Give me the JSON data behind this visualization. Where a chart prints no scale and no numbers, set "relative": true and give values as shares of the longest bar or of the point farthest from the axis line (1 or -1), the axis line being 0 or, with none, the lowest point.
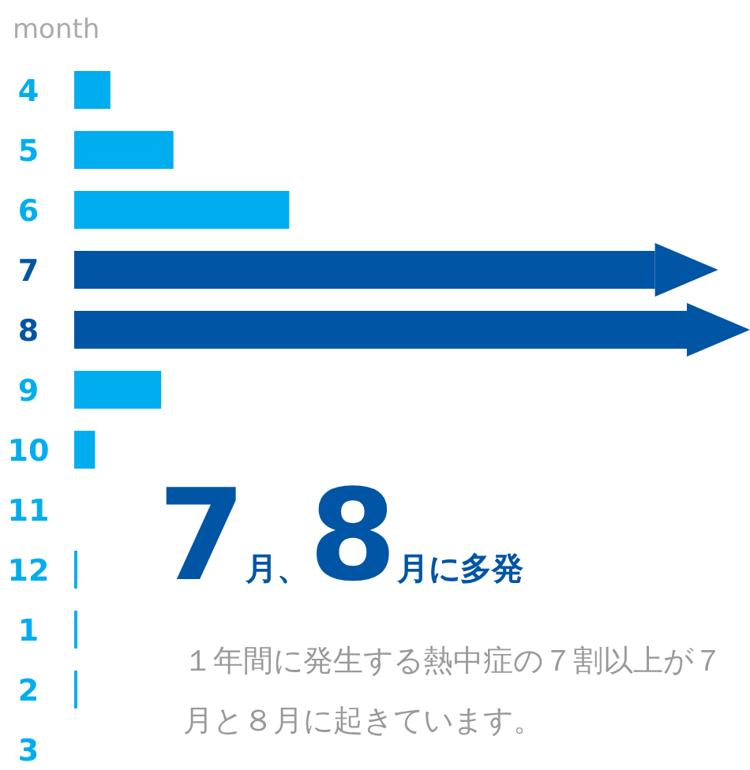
{
  "chart_data": {
    "type": "bar",
    "orientation": "horizontal",
    "relative": true,
    "ylabel": "month",
    "categories": [
      "4",
      "5",
      "6",
      "7",
      "8",
      "9",
      "10",
      "11",
      "12",
      "1",
      "2",
      "3"
    ],
    "values": [
      0.059,
      0.162,
      0.351,
      0.948,
      1,
      0.142,
      0.034,
      0,
      0.005,
      0.005,
      0.005,
      0
    ],
    "colors": [
      "#00aeef",
      "#00aeef",
      "#00aeef",
      "#0055a5",
      "#0055a5",
      "#00aeef",
      "#00aeef",
      "#00aeef",
      "#00aeef",
      "#00aeef",
      "#00aeef",
      "#00aeef"
    ],
    "annotations": [
      "7月、8月に多発",
      "１年間に発生する熱中症の７割以上が７月と８月に起きています。"
    ]
  }
}
